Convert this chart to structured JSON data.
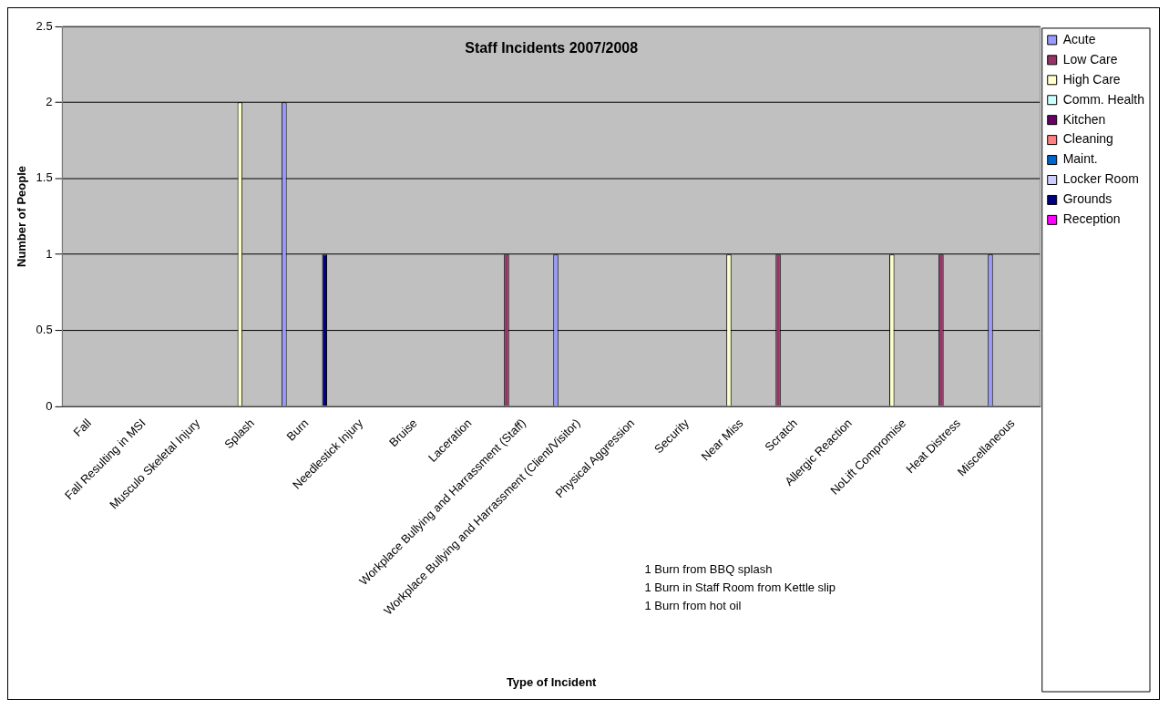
{
  "chart_data": {
    "type": "bar",
    "title": "Staff Incidents 2007/2008",
    "xlabel": "Type of Incident",
    "ylabel": "Number of People",
    "categories": [
      "Fall",
      "Fall Resulting in MSI",
      "Musculo Skeletal Injury",
      "Splash",
      "Burn",
      "Needlestick Injury",
      "Bruise",
      "Laceration",
      "Workplace Bullying and Harrassment (Staff)",
      "Workplace Bullying and Harrassment (Client/Visitor)",
      "Physical Aggression",
      "Security",
      "Near Miss",
      "Scratch",
      "Allergic Reaction",
      "NoLift Compromise",
      "Heat Distress",
      "Miscellaneous"
    ],
    "series": [
      {
        "name": "Acute",
        "color": "#9999ff",
        "values": [
          null,
          null,
          null,
          null,
          2,
          null,
          null,
          null,
          null,
          1,
          null,
          null,
          null,
          null,
          null,
          null,
          null,
          1
        ]
      },
      {
        "name": "Low Care",
        "color": "#993366",
        "values": [
          null,
          null,
          null,
          null,
          null,
          null,
          null,
          null,
          1,
          null,
          null,
          null,
          null,
          1,
          null,
          null,
          1,
          null
        ]
      },
      {
        "name": "High Care",
        "color": "#ffffcc",
        "values": [
          null,
          null,
          null,
          2,
          null,
          null,
          null,
          null,
          null,
          null,
          null,
          null,
          1,
          null,
          null,
          1,
          null,
          null
        ]
      },
      {
        "name": "Comm. Health",
        "color": "#ccffff",
        "values": [
          null,
          null,
          null,
          null,
          null,
          null,
          null,
          null,
          null,
          null,
          null,
          null,
          null,
          null,
          null,
          null,
          null,
          null
        ]
      },
      {
        "name": "Kitchen",
        "color": "#660066",
        "values": [
          null,
          null,
          null,
          null,
          null,
          null,
          null,
          null,
          null,
          null,
          null,
          null,
          null,
          null,
          null,
          null,
          null,
          null
        ]
      },
      {
        "name": "Cleaning",
        "color": "#ff8080",
        "values": [
          null,
          null,
          null,
          null,
          null,
          null,
          null,
          null,
          null,
          null,
          null,
          null,
          null,
          null,
          null,
          null,
          null,
          null
        ]
      },
      {
        "name": "Maint.",
        "color": "#0066cc",
        "values": [
          null,
          null,
          null,
          null,
          null,
          null,
          null,
          null,
          null,
          null,
          null,
          null,
          null,
          null,
          null,
          null,
          null,
          null
        ]
      },
      {
        "name": "Locker Room",
        "color": "#ccccff",
        "values": [
          null,
          null,
          null,
          null,
          null,
          null,
          null,
          null,
          null,
          null,
          null,
          null,
          null,
          null,
          null,
          null,
          null,
          null
        ]
      },
      {
        "name": "Grounds",
        "color": "#000080",
        "values": [
          null,
          null,
          null,
          null,
          1,
          null,
          null,
          null,
          null,
          null,
          null,
          null,
          null,
          null,
          null,
          null,
          null,
          null
        ]
      },
      {
        "name": "Reception",
        "color": "#ff00ff",
        "values": [
          null,
          null,
          null,
          null,
          null,
          null,
          null,
          null,
          null,
          null,
          null,
          null,
          null,
          null,
          null,
          null,
          null,
          null
        ]
      }
    ],
    "ylim": [
      0,
      2.5
    ],
    "yticks": [
      0,
      0.5,
      1,
      1.5,
      2,
      2.5
    ],
    "grid": "y",
    "legend": "right",
    "annotations": [
      "1 Burn from BBQ splash",
      "1 Burn in Staff Room from Kettle slip",
      "1 Burn from hot oil"
    ]
  }
}
